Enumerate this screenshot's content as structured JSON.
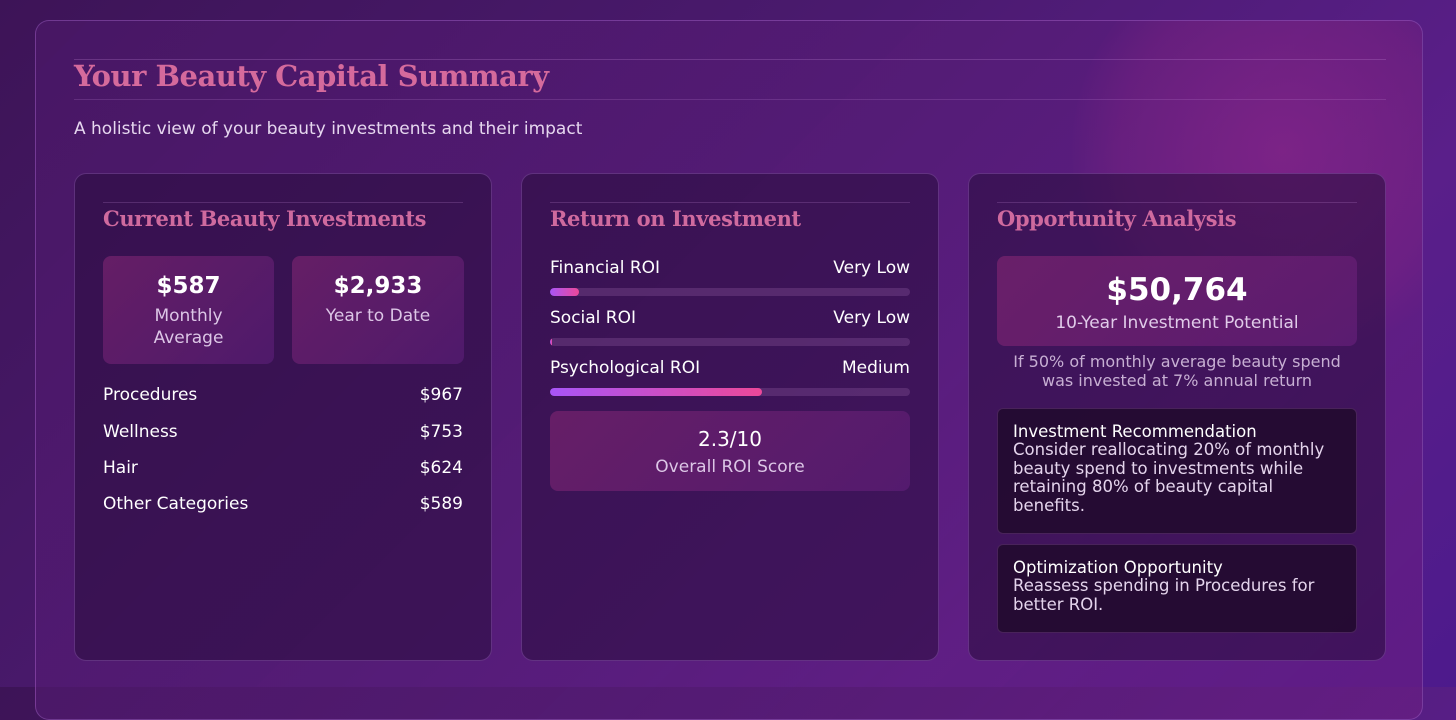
{
  "summary": {
    "title": "Your Beauty Capital Summary",
    "subtitle": "A holistic view of your beauty investments and their impact"
  },
  "investments": {
    "title": "Current Beauty Investments",
    "monthly_value": "$587",
    "monthly_label": "Monthly Average",
    "ytd_value": "$2,933",
    "ytd_label": "Year to Date",
    "categories": [
      {
        "name": "Procedures",
        "amount": "$967"
      },
      {
        "name": "Wellness",
        "amount": "$753"
      },
      {
        "name": "Hair",
        "amount": "$624"
      },
      {
        "name": "Other Categories",
        "amount": "$589"
      }
    ]
  },
  "roi": {
    "title": "Return on Investment",
    "metrics": [
      {
        "label": "Financial ROI",
        "level": "Very Low",
        "fill_percent": 8
      },
      {
        "label": "Social ROI",
        "level": "Very Low",
        "fill_percent": 0.5
      },
      {
        "label": "Psychological ROI",
        "level": "Medium",
        "fill_percent": 59
      }
    ],
    "score_value": "2.3/10",
    "score_label": "Overall ROI Score"
  },
  "opportunity": {
    "title": "Opportunity Analysis",
    "potential_value": "$50,764",
    "potential_label": "10-Year Investment Potential",
    "potential_note": "If 50% of monthly average beauty spend was invested at 7% annual return",
    "recommendation_title": "Investment Recommendation",
    "recommendation_body": "Consider reallocating 20% of monthly beauty spend to investments while retaining 80% of beauty capital benefits.",
    "optimization_title": "Optimization Opportunity",
    "optimization_body": "Reassess spending in Procedures for better ROI."
  },
  "colors": {
    "accent_pink": "#d56a9c",
    "bar_gradient_start": "#a855f7",
    "bar_gradient_end": "#ec4899"
  }
}
